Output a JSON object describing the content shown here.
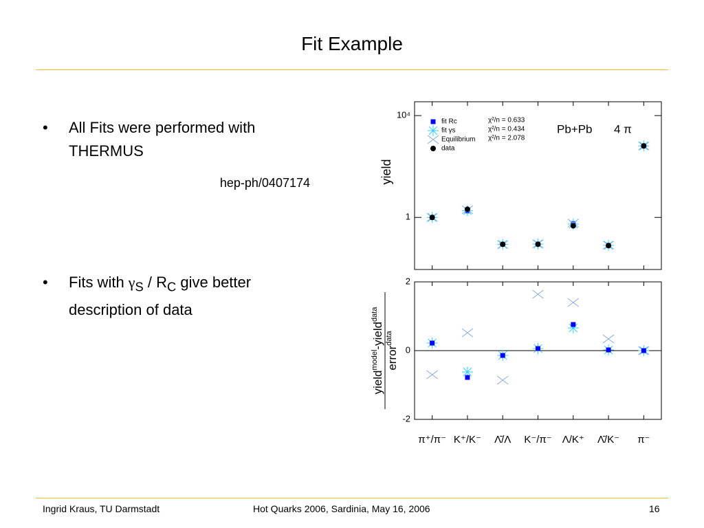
{
  "slide": {
    "title": "Fit Example",
    "bullets": [
      {
        "text": "All Fits were performed with THERMUS",
        "note": "hep-ph/0407174"
      },
      {
        "parts": [
          "Fits with ",
          "γ",
          "S",
          " / R",
          "C",
          " give better description of data"
        ]
      }
    ],
    "footer": {
      "author": "Ingrid Kraus, TU Darmstadt",
      "event": "Hot Quarks 2006, Sardinia, May 16, 2006",
      "page": "16"
    }
  },
  "chart_data": [
    {
      "type": "scatter",
      "ylabel": "yield",
      "log_scale": true,
      "ylim": [
        0.009,
        35000
      ],
      "yticks": [
        1,
        {
          "value": 10000,
          "label": "10⁴"
        }
      ],
      "annotations": [
        "χ²/n = 0.633",
        "χ²/n = 0.434",
        "χ²/n = 2.078",
        "Pb+Pb",
        "4 π"
      ],
      "series": [
        {
          "name": "fit Rc",
          "color": "#0000ff",
          "marker": "square",
          "values": [
            1.0,
            1.8,
            0.088,
            0.09,
            0.57,
            0.08,
            645
          ]
        },
        {
          "name": "fit γs",
          "color": "#33ccff",
          "marker": "star",
          "values": [
            1.0,
            1.85,
            0.088,
            0.09,
            0.55,
            0.08,
            645
          ]
        },
        {
          "name": "Equilibrium",
          "color": "#88aadd",
          "marker": "x",
          "values": [
            1.0,
            2.0,
            0.085,
            0.092,
            0.6,
            0.082,
            645
          ]
        },
        {
          "name": "data",
          "color": "#000000",
          "marker": "circle",
          "values": [
            1.0,
            2.1,
            0.088,
            0.088,
            0.47,
            0.078,
            645
          ]
        }
      ]
    },
    {
      "type": "scatter",
      "ylabel_numerator": [
        "yield",
        "model",
        "-yield",
        "data"
      ],
      "ylabel_denominator": [
        "error",
        "data"
      ],
      "categories": [
        "π⁺/π⁻",
        "K⁺/K⁻",
        "Λ̄/Λ",
        "K⁻/π⁻",
        "Λ/K⁺",
        "Λ̄/K⁻",
        "π⁻"
      ],
      "ylim": [
        -2,
        2
      ],
      "yticks": [
        -2,
        0,
        2
      ],
      "zero_line": true,
      "series": [
        {
          "color": "#88aadd",
          "marker": "x",
          "values": [
            -0.7,
            0.52,
            -0.86,
            1.64,
            1.4,
            0.34,
            0
          ]
        },
        {
          "color": "#33ccff",
          "marker": "star",
          "values": [
            0.22,
            -0.62,
            -0.14,
            0.06,
            0.66,
            0.02,
            0
          ]
        },
        {
          "color": "#0000ff",
          "marker": "square",
          "values": [
            0.22,
            -0.78,
            -0.14,
            0.06,
            0.76,
            0.02,
            0
          ]
        }
      ]
    }
  ]
}
